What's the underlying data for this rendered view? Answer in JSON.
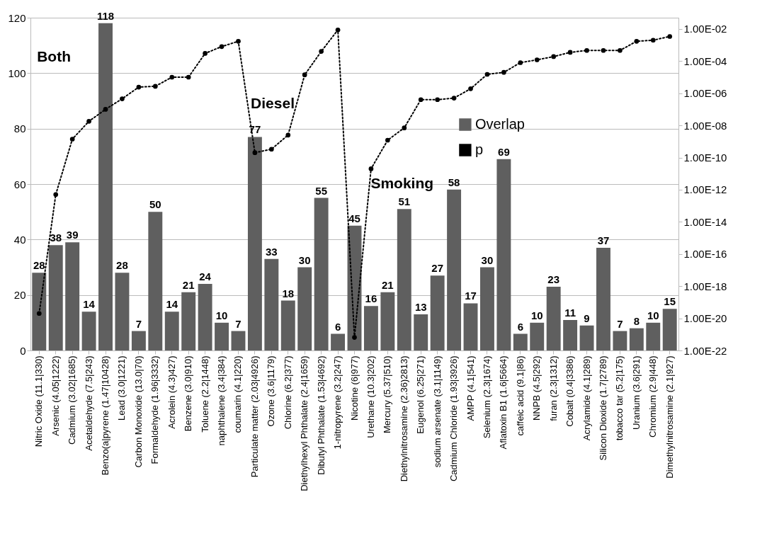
{
  "chart_data": {
    "type": "bar",
    "categories": [
      "Nitric Oxide (11.1|330)",
      "Arsenic (4.05|1222)",
      "Cadmium (3.02|1685)",
      "Acetaldehyde (7.5|243)",
      "Benzo(a|pyrene (1.47|10428)",
      "Lead (3.0|1221)",
      "Carbon Monoxide (13.0|70)",
      "Formaldehyde (1.96|3332)",
      "Acrolein (4.3)427)",
      "Benzene (3.0|910)",
      "Toluene (2.2|1448)",
      "naphthalene (3.4|384)",
      "coumarin (4.1|220)",
      "Particulate matter (2.03|4926)",
      "Ozone (3.6|1179)",
      "Chlorine (6.2|377)",
      "Diethylhexyl Phthalate (2.4|1659)",
      "Dibutyl Phthalate (1.53|4692)",
      "1-nitropyrene (3.2|247)",
      "Nicotine (6|977)",
      "Urethane (10.3|202)",
      "Mercury (5.37|510)",
      "Diethylnitrosamine (2.36)2813)",
      "Eugenol (6.25|271)",
      "sodium arsenate (3.1|1149)",
      "Cadmium Chloride (1.93|3926)",
      "AMPP (4.1|541)",
      "Selenium (2.3|1674)",
      "Aflatoxin B1 (1.6|5664)",
      "caffeic acid (9.1|86)",
      "NNPB (4.5|292)",
      "furan (2.3|1312)",
      "Cobalt (0.4|3386)",
      "Acrylamide (4.1|289)",
      "Silicon Dioxide (1.7|2789)",
      "tobacco tar (5.2|175)",
      "Uranium (3.6|291)",
      "Chromium (2.9|448)",
      "Dimethylnitrosamine (2.1|927)"
    ],
    "series": [
      {
        "name": "Overlap",
        "color": "#5f5f5f",
        "data_labels": true,
        "values": [
          28,
          38,
          39,
          14,
          118,
          28,
          7,
          50,
          14,
          21,
          24,
          10,
          7,
          77,
          33,
          18,
          30,
          55,
          6,
          45,
          16,
          21,
          51,
          13,
          27,
          58,
          17,
          30,
          69,
          6,
          10,
          23,
          11,
          9,
          37,
          7,
          8,
          10,
          15
        ]
      },
      {
        "name": "p",
        "type": "line",
        "axis": "y2",
        "color": "#000000",
        "marker": "circle",
        "line_style": "dotted",
        "values": [
          2e-20,
          5e-13,
          1.4e-09,
          1.8e-08,
          1e-07,
          4.5e-07,
          2.4e-06,
          2.7e-06,
          1e-05,
          1e-05,
          0.0003,
          0.0008,
          0.0017,
          2e-10,
          3.3e-10,
          2.5e-09,
          1.4e-05,
          0.0004,
          0.0087,
          6.5e-22,
          2e-11,
          1.2e-09,
          7e-09,
          4e-07,
          4e-07,
          5e-07,
          1.9e-06,
          1.5e-05,
          2e-05,
          8e-05,
          0.00012,
          0.00019,
          0.00035,
          0.00046,
          0.00046,
          0.00046,
          0.0017,
          0.002,
          0.0034
        ]
      }
    ],
    "ylim": [
      0,
      120
    ],
    "yticks": [
      0,
      20,
      40,
      60,
      80,
      100,
      120
    ],
    "log": "y2",
    "y2lim": [
      1e-22,
      0.05
    ],
    "y2ticks": [
      {
        "value": 1e-22,
        "label": "1.00E-22"
      },
      {
        "value": 1e-20,
        "label": "1.00E-20"
      },
      {
        "value": 1e-18,
        "label": "1.00E-18"
      },
      {
        "value": 1e-16,
        "label": "1.00E-16"
      },
      {
        "value": 1e-14,
        "label": "1.00E-14"
      },
      {
        "value": 1e-12,
        "label": "1.00E-12"
      },
      {
        "value": 1e-10,
        "label": "1.00E-10"
      },
      {
        "value": 1e-08,
        "label": "1.00E-08"
      },
      {
        "value": 1e-06,
        "label": "1.00E-06"
      },
      {
        "value": 0.0001,
        "label": "1.00E-04"
      },
      {
        "value": 0.01,
        "label": "1.00E-02"
      }
    ],
    "grid": "y",
    "legend": "right",
    "annotations": [
      "Both",
      "Diesel",
      "Smoking"
    ]
  }
}
